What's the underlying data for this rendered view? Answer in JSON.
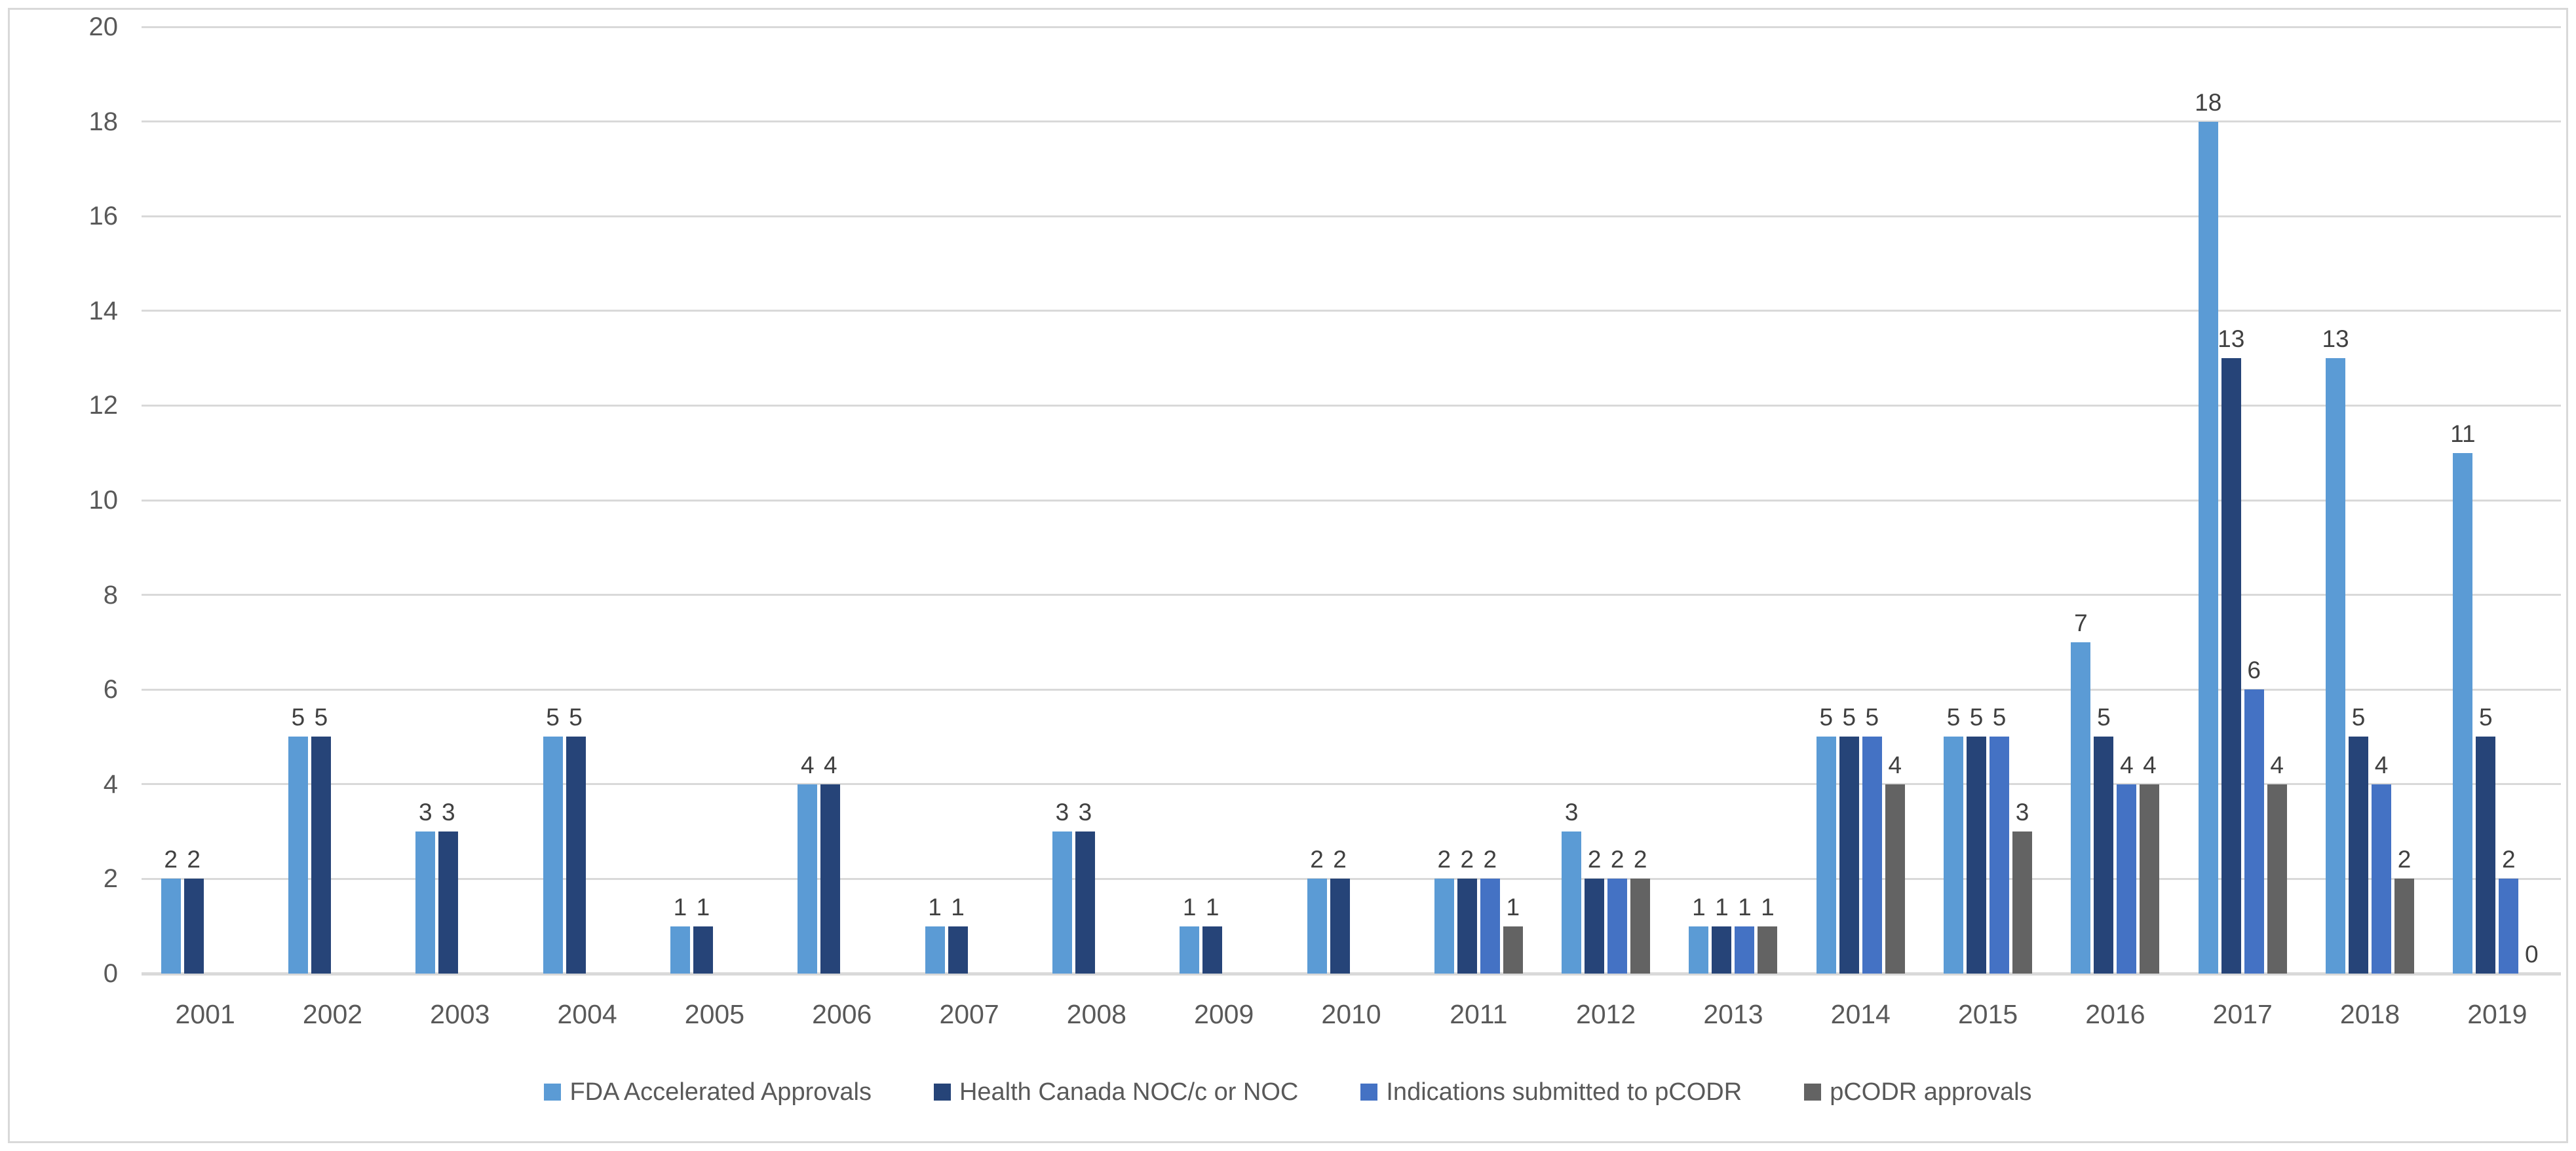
{
  "chart_data": {
    "type": "bar",
    "title": "",
    "xlabel": "",
    "ylabel": "",
    "ylim": [
      0,
      20
    ],
    "y_tick_step": 2,
    "y_ticks": [
      0,
      2,
      4,
      6,
      8,
      10,
      12,
      14,
      16,
      18,
      20
    ],
    "grid": true,
    "legend_position": "bottom",
    "data_labels": true,
    "categories": [
      "2001",
      "2002",
      "2003",
      "2004",
      "2005",
      "2006",
      "2007",
      "2008",
      "2009",
      "2010",
      "2011",
      "2012",
      "2013",
      "2014",
      "2015",
      "2016",
      "2017",
      "2018",
      "2019"
    ],
    "series": [
      {
        "name": "FDA Accelerated Approvals",
        "color": "#5B9BD5",
        "values": [
          2,
          5,
          3,
          5,
          1,
          4,
          1,
          3,
          1,
          2,
          2,
          3,
          1,
          5,
          5,
          7,
          18,
          13,
          11
        ]
      },
      {
        "name": "Health Canada NOC/c or NOC",
        "color": "#264478",
        "values": [
          2,
          5,
          3,
          5,
          1,
          4,
          1,
          3,
          1,
          2,
          2,
          2,
          1,
          5,
          5,
          5,
          13,
          5,
          5
        ]
      },
      {
        "name": "Indications submitted to pCODR",
        "color": "#4472C4",
        "values": [
          null,
          null,
          null,
          null,
          null,
          null,
          null,
          null,
          null,
          null,
          2,
          2,
          1,
          5,
          5,
          4,
          6,
          4,
          2
        ]
      },
      {
        "name": "pCODR approvals",
        "color": "#636363",
        "values": [
          null,
          null,
          null,
          null,
          null,
          null,
          null,
          null,
          null,
          null,
          1,
          2,
          1,
          4,
          3,
          4,
          4,
          2,
          0
        ]
      }
    ],
    "colors": {
      "gridline": "#D9D9D9",
      "axis_text": "#595959",
      "data_label_text": "#404040",
      "background": "#FFFFFF",
      "border": "#D9D9D9"
    }
  }
}
